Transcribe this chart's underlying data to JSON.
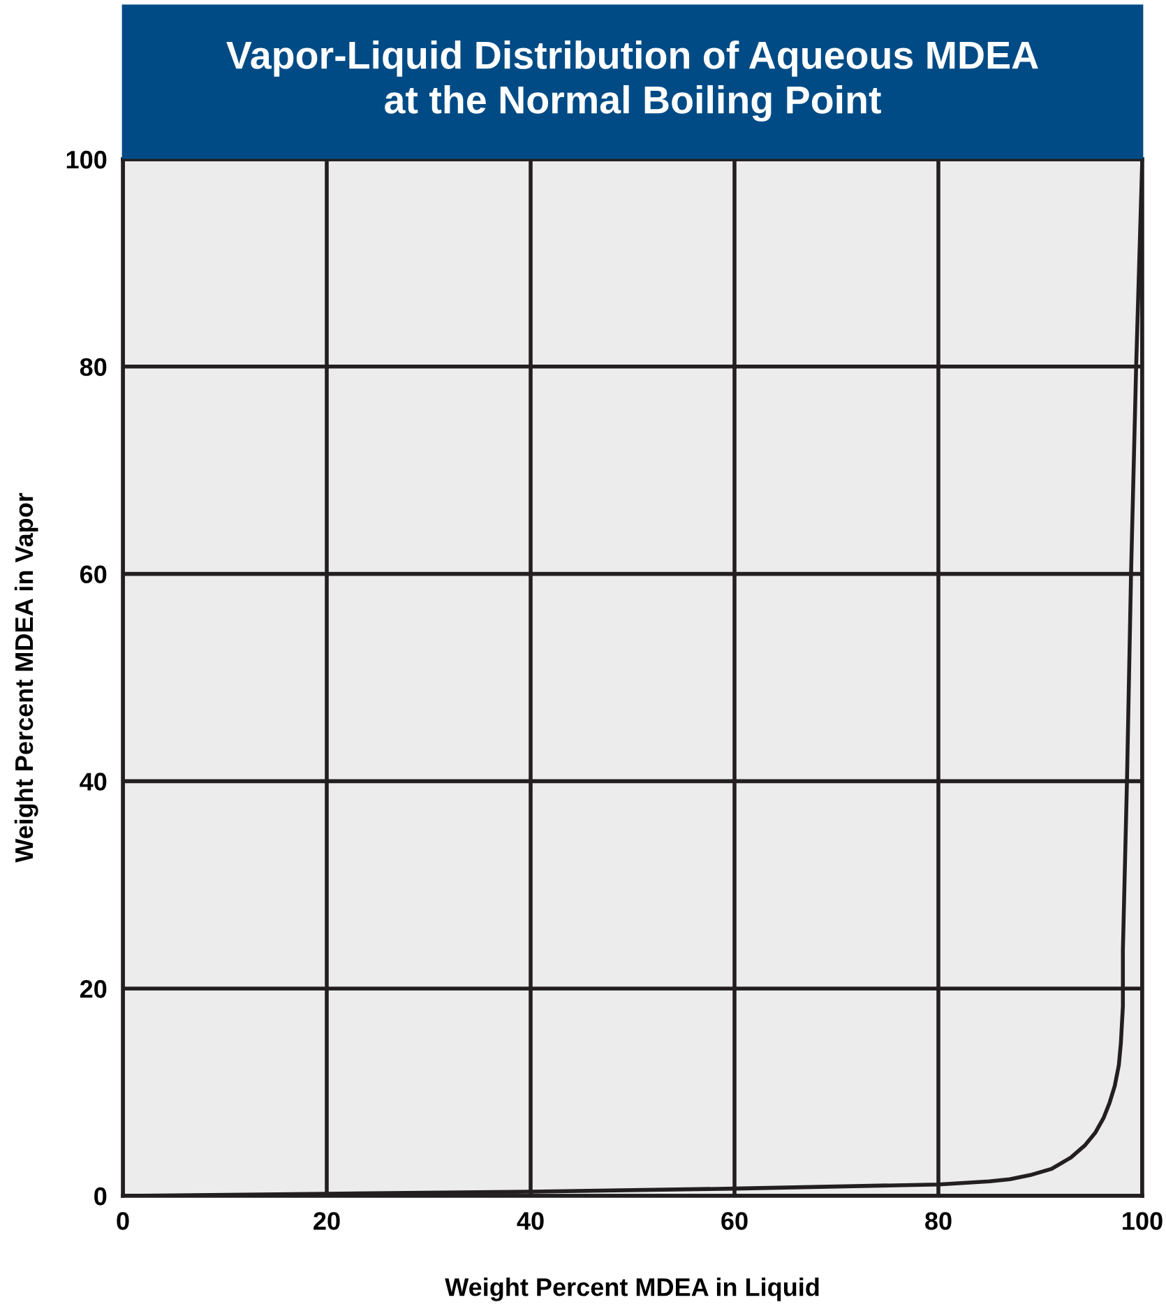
{
  "chart_data": {
    "type": "line",
    "title": "Vapor-Liquid Distribution of Aqueous MDEA\nat the Normal Boiling Point",
    "xlabel": "Weight Percent MDEA in Liquid",
    "ylabel": "Weight Percent MDEA in Vapor",
    "series": [
      {
        "color": "#231f20",
        "x": [
          0,
          20,
          40,
          60,
          80,
          85,
          87,
          89,
          91.1,
          93,
          94.4,
          95.4,
          96.2,
          96.8,
          97.3,
          97.7,
          97.9,
          98.1,
          98.1,
          98.5,
          98.9,
          99.4,
          100
        ],
        "values": [
          0,
          0.2,
          0.4,
          0.7,
          1.1,
          1.4,
          1.6,
          2,
          2.6,
          3.7,
          4.9,
          6.1,
          7.5,
          9,
          10.6,
          12.6,
          14.7,
          18.3,
          23.7,
          40,
          60,
          80,
          100
        ]
      }
    ],
    "xlim": [
      0,
      100
    ],
    "ylim": [
      0,
      100
    ],
    "xticks": [
      0,
      20,
      40,
      60,
      80,
      100
    ],
    "yticks": [
      0,
      20,
      40,
      60,
      80,
      100
    ],
    "grid": true,
    "legend": false,
    "marker": "none",
    "line_style": "solid"
  }
}
